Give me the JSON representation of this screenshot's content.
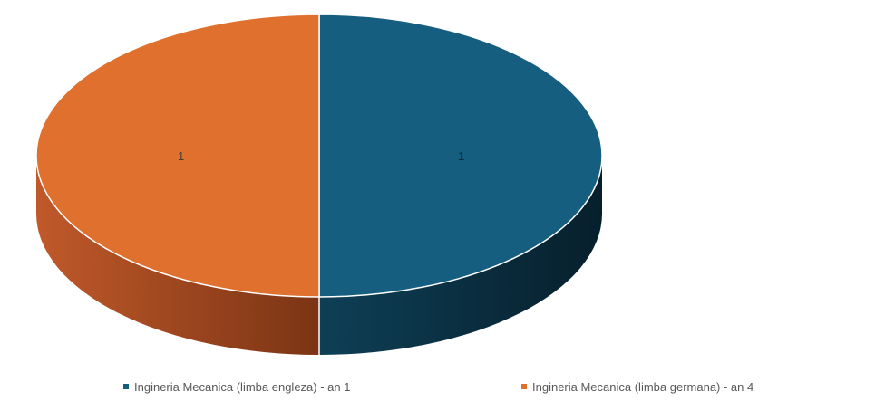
{
  "chart_data": {
    "type": "pie",
    "style": "3d",
    "title": "",
    "categories": [
      "Ingineria Mecanica (limba engleza) - an 1",
      "Ingineria Mecanica (limba germana) - an 4"
    ],
    "values": [
      1,
      1
    ],
    "data_labels": [
      "1",
      "1"
    ],
    "colors": [
      "#155e7f",
      "#e0702e"
    ],
    "legend_position": "bottom"
  }
}
